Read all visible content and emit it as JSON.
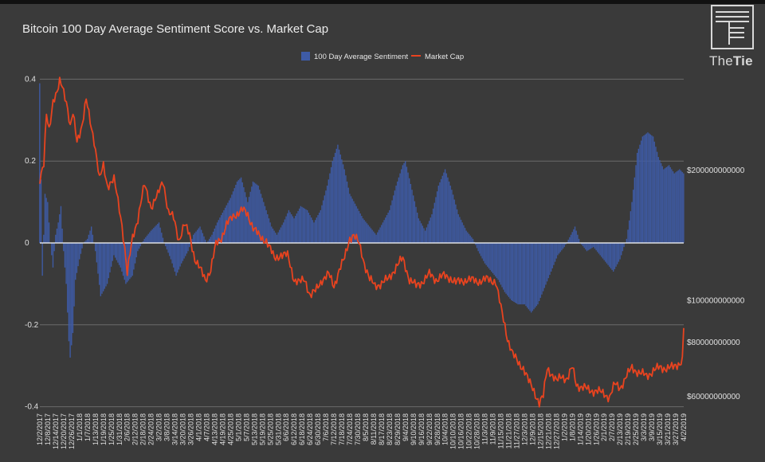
{
  "brand": {
    "name_light": "The",
    "name_bold": "Tie"
  },
  "chart_data": {
    "type": "bar+line",
    "title": "Bitcoin 100 Day Average Sentiment Score vs. Market Cap",
    "legend_position": "top-center",
    "grid": "horizontal",
    "colors": {
      "background": "#3a3a3a",
      "sentiment": "#3e5ba6",
      "market_cap": "#e8431f",
      "grid": "#6a6a6a",
      "zero_line": "#ffffff"
    },
    "x_tick_labels": [
      "12/2/2017",
      "12/8/2017",
      "12/14/2017",
      "12/20/2017",
      "12/26/2017",
      "1/1/2018",
      "1/7/2018",
      "1/13/2018",
      "1/19/2018",
      "1/25/2018",
      "1/31/2018",
      "2/6/2018",
      "2/12/2018",
      "2/18/2018",
      "2/24/2018",
      "3/2/2018",
      "3/8/2018",
      "3/14/2018",
      "3/20/2018",
      "3/26/2018",
      "4/1/2018",
      "4/7/2018",
      "4/13/2018",
      "4/19/2018",
      "4/25/2018",
      "5/1/2018",
      "5/7/2018",
      "5/13/2018",
      "5/19/2018",
      "5/25/2018",
      "5/31/2018",
      "6/6/2018",
      "6/12/2018",
      "6/18/2018",
      "6/24/2018",
      "6/30/2018",
      "7/6/2018",
      "7/12/2018",
      "7/18/2018",
      "7/24/2018",
      "7/30/2018",
      "8/5/2018",
      "8/11/2018",
      "8/17/2018",
      "8/23/2018",
      "8/29/2018",
      "9/4/2018",
      "9/10/2018",
      "9/16/2018",
      "9/22/2018",
      "9/28/2018",
      "10/4/2018",
      "10/10/2018",
      "10/16/2018",
      "10/22/2018",
      "10/28/2018",
      "11/3/2018",
      "11/9/2018",
      "11/15/2018",
      "11/21/2018",
      "11/27/2018",
      "12/3/2018",
      "12/9/2018",
      "12/15/2018",
      "12/21/2018",
      "12/27/2018",
      "1/2/2019",
      "1/8/2019",
      "1/14/2019",
      "1/20/2019",
      "1/26/2019",
      "2/1/2019",
      "2/7/2019",
      "2/13/2019",
      "2/19/2019",
      "2/25/2019",
      "3/3/2019",
      "3/9/2019",
      "3/15/2019",
      "3/21/2019",
      "3/27/2019",
      "4/2/2019"
    ],
    "left_axis": {
      "ticks": [
        "0.4",
        "0.2",
        "0",
        "-0.2",
        "-0.4"
      ],
      "tick_values": [
        0.4,
        0.2,
        0,
        -0.2,
        -0.4
      ],
      "range": [
        -0.4,
        0.4
      ]
    },
    "right_axis": {
      "ticks": [
        "$200000000000",
        "$100000000000",
        "$80000000000",
        "$60000000000"
      ],
      "tick_values": [
        200000000000,
        100000000000,
        80000000000,
        60000000000
      ],
      "scale": "log"
    },
    "series": [
      {
        "name": "100 Day Average Sentiment",
        "kind": "bar",
        "axis": "left",
        "keypoints": [
          [
            "12/2/2017",
            0.39
          ],
          [
            "12/4/2017",
            -0.08
          ],
          [
            "12/6/2017",
            0.12
          ],
          [
            "12/8/2017",
            0.1
          ],
          [
            "12/10/2017",
            0.0
          ],
          [
            "12/12/2017",
            -0.06
          ],
          [
            "12/14/2017",
            0.02
          ],
          [
            "12/16/2017",
            0.05
          ],
          [
            "12/18/2017",
            0.09
          ],
          [
            "12/20/2017",
            -0.02
          ],
          [
            "12/22/2017",
            -0.1
          ],
          [
            "12/24/2017",
            -0.24
          ],
          [
            "12/25/2017",
            -0.28
          ],
          [
            "12/27/2017",
            -0.22
          ],
          [
            "12/29/2017",
            -0.09
          ],
          [
            "1/1/2018",
            -0.04
          ],
          [
            "1/4/2018",
            0.0
          ],
          [
            "1/7/2018",
            0.01
          ],
          [
            "1/10/2018",
            0.04
          ],
          [
            "1/13/2018",
            -0.02
          ],
          [
            "1/17/2018",
            -0.13
          ],
          [
            "1/22/2018",
            -0.1
          ],
          [
            "1/27/2018",
            -0.03
          ],
          [
            "2/1/2018",
            -0.06
          ],
          [
            "2/5/2018",
            -0.1
          ],
          [
            "2/10/2018",
            -0.08
          ],
          [
            "2/14/2018",
            -0.02
          ],
          [
            "2/19/2018",
            0.01
          ],
          [
            "2/24/2018",
            0.03
          ],
          [
            "3/2/2018",
            0.05
          ],
          [
            "3/6/2018",
            0.0
          ],
          [
            "3/11/2018",
            -0.04
          ],
          [
            "3/15/2018",
            -0.08
          ],
          [
            "3/19/2018",
            -0.05
          ],
          [
            "3/24/2018",
            -0.02
          ],
          [
            "3/28/2018",
            0.02
          ],
          [
            "4/2/2018",
            0.04
          ],
          [
            "4/7/2018",
            0.0
          ],
          [
            "4/11/2018",
            0.02
          ],
          [
            "4/15/2018",
            0.05
          ],
          [
            "4/20/2018",
            0.08
          ],
          [
            "4/25/2018",
            0.11
          ],
          [
            "4/30/2018",
            0.15
          ],
          [
            "5/3/2018",
            0.16
          ],
          [
            "5/8/2018",
            0.1
          ],
          [
            "5/12/2018",
            0.15
          ],
          [
            "5/16/2018",
            0.14
          ],
          [
            "5/21/2018",
            0.09
          ],
          [
            "5/26/2018",
            0.04
          ],
          [
            "5/30/2018",
            0.02
          ],
          [
            "6/4/2018",
            0.05
          ],
          [
            "6/8/2018",
            0.08
          ],
          [
            "6/12/2018",
            0.06
          ],
          [
            "6/17/2018",
            0.09
          ],
          [
            "6/22/2018",
            0.08
          ],
          [
            "6/27/2018",
            0.05
          ],
          [
            "7/2/2018",
            0.08
          ],
          [
            "7/7/2018",
            0.14
          ],
          [
            "7/11/2018",
            0.2
          ],
          [
            "7/15/2018",
            0.24
          ],
          [
            "7/20/2018",
            0.18
          ],
          [
            "7/24/2018",
            0.12
          ],
          [
            "7/29/2018",
            0.09
          ],
          [
            "8/3/2018",
            0.06
          ],
          [
            "8/8/2018",
            0.04
          ],
          [
            "8/13/2018",
            0.02
          ],
          [
            "8/18/2018",
            0.05
          ],
          [
            "8/23/2018",
            0.08
          ],
          [
            "8/28/2018",
            0.14
          ],
          [
            "9/2/2018",
            0.19
          ],
          [
            "9/4/2018",
            0.2
          ],
          [
            "9/9/2018",
            0.13
          ],
          [
            "9/14/2018",
            0.06
          ],
          [
            "9/19/2018",
            0.03
          ],
          [
            "9/24/2018",
            0.07
          ],
          [
            "9/29/2018",
            0.14
          ],
          [
            "10/4/2018",
            0.18
          ],
          [
            "10/9/2018",
            0.13
          ],
          [
            "10/14/2018",
            0.07
          ],
          [
            "10/20/2018",
            0.03
          ],
          [
            "10/25/2018",
            0.01
          ],
          [
            "10/29/2018",
            -0.02
          ],
          [
            "11/3/2018",
            -0.05
          ],
          [
            "11/8/2018",
            -0.07
          ],
          [
            "11/13/2018",
            -0.09
          ],
          [
            "11/18/2018",
            -0.12
          ],
          [
            "11/23/2018",
            -0.14
          ],
          [
            "11/28/2018",
            -0.15
          ],
          [
            "12/3/2018",
            -0.15
          ],
          [
            "12/8/2018",
            -0.17
          ],
          [
            "12/13/2018",
            -0.15
          ],
          [
            "12/18/2018",
            -0.11
          ],
          [
            "12/23/2018",
            -0.07
          ],
          [
            "12/28/2018",
            -0.03
          ],
          [
            "1/2/2019",
            -0.01
          ],
          [
            "1/7/2019",
            0.02
          ],
          [
            "1/10/2019",
            0.04
          ],
          [
            "1/14/2019",
            0.0
          ],
          [
            "1/19/2019",
            -0.02
          ],
          [
            "1/24/2019",
            -0.01
          ],
          [
            "1/29/2019",
            -0.03
          ],
          [
            "2/3/2019",
            -0.05
          ],
          [
            "2/8/2019",
            -0.07
          ],
          [
            "2/13/2019",
            -0.04
          ],
          [
            "2/18/2019",
            0.01
          ],
          [
            "2/22/2019",
            0.1
          ],
          [
            "2/26/2019",
            0.22
          ],
          [
            "3/2/2019",
            0.26
          ],
          [
            "3/6/2019",
            0.27
          ],
          [
            "3/10/2019",
            0.26
          ],
          [
            "3/14/2019",
            0.21
          ],
          [
            "3/18/2019",
            0.18
          ],
          [
            "3/22/2019",
            0.19
          ],
          [
            "3/26/2019",
            0.17
          ],
          [
            "3/30/2019",
            0.18
          ],
          [
            "4/2/2019",
            0.17
          ]
        ]
      },
      {
        "name": "Market Cap",
        "kind": "line",
        "axis": "right",
        "keypoints": [
          [
            "12/2/2017",
            190000000000
          ],
          [
            "12/5/2017",
            205000000000
          ],
          [
            "12/7/2017",
            270000000000
          ],
          [
            "12/9/2017",
            250000000000
          ],
          [
            "12/12/2017",
            290000000000
          ],
          [
            "12/15/2017",
            300000000000
          ],
          [
            "12/17/2017",
            320000000000
          ],
          [
            "12/19/2017",
            315000000000
          ],
          [
            "12/22/2017",
            290000000000
          ],
          [
            "12/25/2017",
            250000000000
          ],
          [
            "12/27/2017",
            270000000000
          ],
          [
            "12/30/2017",
            235000000000
          ],
          [
            "1/3/2018",
            255000000000
          ],
          [
            "1/6/2018",
            290000000000
          ],
          [
            "1/9/2018",
            260000000000
          ],
          [
            "1/12/2018",
            235000000000
          ],
          [
            "1/16/2018",
            190000000000
          ],
          [
            "1/19/2018",
            205000000000
          ],
          [
            "1/22/2018",
            185000000000
          ],
          [
            "1/27/2018",
            190000000000
          ],
          [
            "2/2/2018",
            150000000000
          ],
          [
            "2/6/2018",
            115000000000
          ],
          [
            "2/10/2018",
            140000000000
          ],
          [
            "2/14/2018",
            155000000000
          ],
          [
            "2/19/2018",
            185000000000
          ],
          [
            "2/24/2018",
            165000000000
          ],
          [
            "3/1/2018",
            175000000000
          ],
          [
            "3/5/2018",
            190000000000
          ],
          [
            "3/9/2018",
            160000000000
          ],
          [
            "3/13/2018",
            155000000000
          ],
          [
            "3/17/2018",
            138000000000
          ],
          [
            "3/21/2018",
            150000000000
          ],
          [
            "3/25/2018",
            142000000000
          ],
          [
            "3/29/2018",
            125000000000
          ],
          [
            "4/2/2018",
            118000000000
          ],
          [
            "4/6/2018",
            112000000000
          ],
          [
            "4/10/2018",
            118000000000
          ],
          [
            "4/14/2018",
            135000000000
          ],
          [
            "4/18/2018",
            140000000000
          ],
          [
            "4/22/2018",
            150000000000
          ],
          [
            "4/28/2018",
            158000000000
          ],
          [
            "5/4/2018",
            162000000000
          ],
          [
            "5/8/2018",
            158000000000
          ],
          [
            "5/12/2018",
            148000000000
          ],
          [
            "5/17/2018",
            140000000000
          ],
          [
            "5/22/2018",
            138000000000
          ],
          [
            "5/28/2018",
            125000000000
          ],
          [
            "6/2/2018",
            128000000000
          ],
          [
            "6/7/2018",
            127000000000
          ],
          [
            "6/12/2018",
            112000000000
          ],
          [
            "6/16/2018",
            110000000000
          ],
          [
            "6/20/2018",
            112000000000
          ],
          [
            "6/24/2018",
            103000000000
          ],
          [
            "6/28/2018",
            105000000000
          ],
          [
            "7/3/2018",
            112000000000
          ],
          [
            "7/8/2018",
            115000000000
          ],
          [
            "7/12/2018",
            108000000000
          ],
          [
            "7/16/2018",
            118000000000
          ],
          [
            "7/20/2018",
            125000000000
          ],
          [
            "7/24/2018",
            140000000000
          ],
          [
            "7/27/2018",
            142000000000
          ],
          [
            "7/31/2018",
            135000000000
          ],
          [
            "8/4/2018",
            122000000000
          ],
          [
            "8/8/2018",
            112000000000
          ],
          [
            "8/12/2018",
            108000000000
          ],
          [
            "8/17/2018",
            110000000000
          ],
          [
            "8/22/2018",
            112000000000
          ],
          [
            "8/28/2018",
            120000000000
          ],
          [
            "9/2/2018",
            125000000000
          ],
          [
            "9/7/2018",
            112000000000
          ],
          [
            "9/12/2018",
            108000000000
          ],
          [
            "9/17/2018",
            111000000000
          ],
          [
            "9/22/2018",
            115000000000
          ],
          [
            "9/27/2018",
            112000000000
          ],
          [
            "10/2/2018",
            114000000000
          ],
          [
            "10/8/2018",
            113000000000
          ],
          [
            "10/12/2018",
            110000000000
          ],
          [
            "10/20/2018",
            112000000000
          ],
          [
            "10/28/2018",
            111000000000
          ],
          [
            "11/5/2018",
            112000000000
          ],
          [
            "11/11/2018",
            111000000000
          ],
          [
            "11/15/2018",
            96000000000
          ],
          [
            "11/20/2018",
            82000000000
          ],
          [
            "11/24/2018",
            75000000000
          ],
          [
            "11/28/2018",
            72000000000
          ],
          [
            "12/2/2018",
            70000000000
          ],
          [
            "12/6/2018",
            65000000000
          ],
          [
            "12/10/2018",
            62000000000
          ],
          [
            "12/14/2018",
            58000000000
          ],
          [
            "12/17/2018",
            60000000000
          ],
          [
            "12/20/2018",
            70000000000
          ],
          [
            "12/23/2018",
            68000000000
          ],
          [
            "12/27/2018",
            65000000000
          ],
          [
            "12/31/2018",
            67000000000
          ],
          [
            "1/4/2019",
            66000000000
          ],
          [
            "1/8/2019",
            70000000000
          ],
          [
            "1/11/2019",
            64000000000
          ],
          [
            "1/16/2019",
            63000000000
          ],
          [
            "1/21/2019",
            62000000000
          ],
          [
            "1/26/2019",
            62000000000
          ],
          [
            "1/31/2019",
            61000000000
          ],
          [
            "2/5/2019",
            60000000000
          ],
          [
            "2/9/2019",
            64000000000
          ],
          [
            "2/13/2019",
            63000000000
          ],
          [
            "2/18/2019",
            67000000000
          ],
          [
            "2/22/2019",
            70000000000
          ],
          [
            "2/28/2019",
            68000000000
          ],
          [
            "3/5/2019",
            67000000000
          ],
          [
            "3/10/2019",
            69000000000
          ],
          [
            "3/15/2019",
            70000000000
          ],
          [
            "3/20/2019",
            70000000000
          ],
          [
            "3/25/2019",
            70000000000
          ],
          [
            "3/30/2019",
            72000000000
          ],
          [
            "4/1/2019",
            73000000000
          ],
          [
            "4/2/2019",
            87000000000
          ]
        ]
      }
    ]
  }
}
